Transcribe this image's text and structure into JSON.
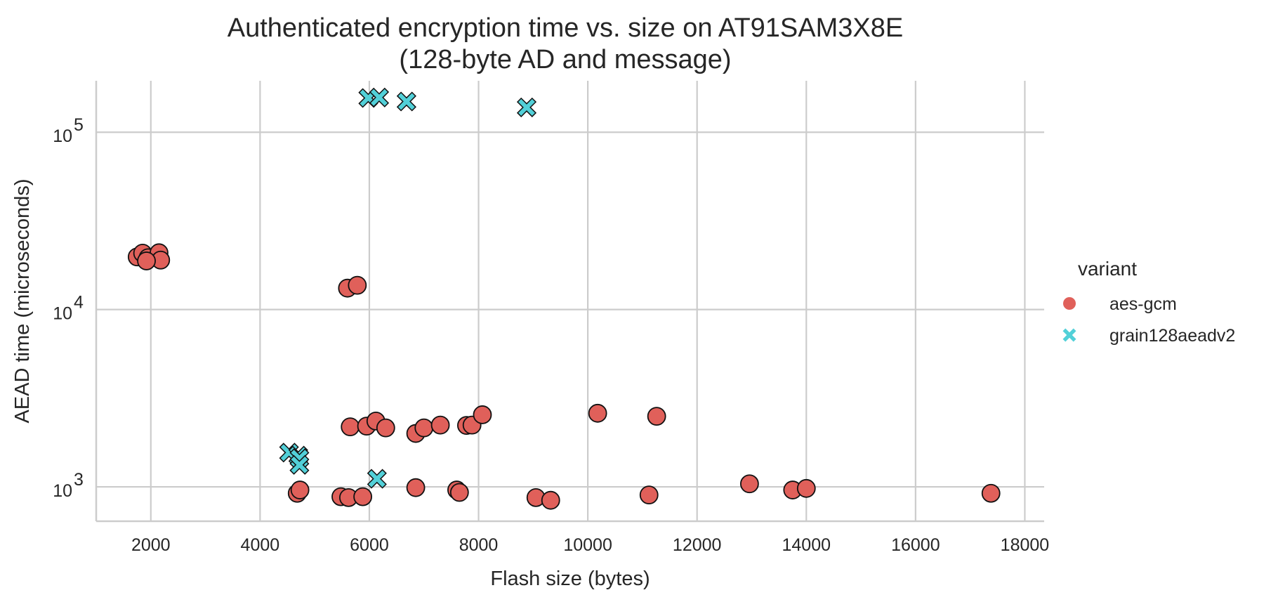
{
  "chart_data": {
    "type": "scatter",
    "title": "Authenticated encryption time vs. size on AT91SAM3X8E\n(128-byte AD and message)",
    "xlabel": "Flash size (bytes)",
    "ylabel": "AEAD time (microseconds)",
    "xlim": [
      1000,
      18200
    ],
    "ylim": [
      640,
      195000
    ],
    "yscale": "log",
    "grid": true,
    "x_ticks": [
      2000,
      4000,
      6000,
      8000,
      10000,
      12000,
      14000,
      16000,
      18000
    ],
    "y_ticks": [
      {
        "value": 1000,
        "base": "10",
        "exp": "3"
      },
      {
        "value": 10000,
        "base": "10",
        "exp": "4"
      },
      {
        "value": 100000,
        "base": "10",
        "exp": "5"
      }
    ],
    "legend": {
      "title": "variant",
      "position": "right"
    },
    "series": [
      {
        "name": "aes-gcm",
        "marker": "circle",
        "color": "#e0605a",
        "points": [
          [
            1750,
            19800
          ],
          [
            1850,
            20800
          ],
          [
            1950,
            19600
          ],
          [
            2150,
            20900
          ],
          [
            2180,
            19000
          ],
          [
            1920,
            18800
          ],
          [
            5600,
            13200
          ],
          [
            5780,
            13700
          ],
          [
            5650,
            2180
          ],
          [
            5950,
            2200
          ],
          [
            6120,
            2350
          ],
          [
            6300,
            2150
          ],
          [
            6850,
            2000
          ],
          [
            7000,
            2150
          ],
          [
            7300,
            2230
          ],
          [
            7780,
            2220
          ],
          [
            7880,
            2230
          ],
          [
            8070,
            2550
          ],
          [
            10180,
            2600
          ],
          [
            11260,
            2500
          ],
          [
            4680,
            920
          ],
          [
            4730,
            960
          ],
          [
            5480,
            880
          ],
          [
            5620,
            870
          ],
          [
            5880,
            880
          ],
          [
            6850,
            990
          ],
          [
            7600,
            960
          ],
          [
            7650,
            930
          ],
          [
            9050,
            870
          ],
          [
            9320,
            840
          ],
          [
            11120,
            900
          ],
          [
            12960,
            1040
          ],
          [
            13750,
            960
          ],
          [
            14000,
            980
          ],
          [
            17380,
            920
          ]
        ]
      },
      {
        "name": "grain128aeadv2",
        "marker": "x",
        "color": "#52d0d8",
        "points": [
          [
            5980,
            156000
          ],
          [
            6180,
            157000
          ],
          [
            6680,
            149000
          ],
          [
            8880,
            138000
          ],
          [
            4530,
            1560
          ],
          [
            4700,
            1500
          ],
          [
            4720,
            1450
          ],
          [
            4720,
            1330
          ],
          [
            6140,
            1110
          ]
        ]
      }
    ]
  }
}
